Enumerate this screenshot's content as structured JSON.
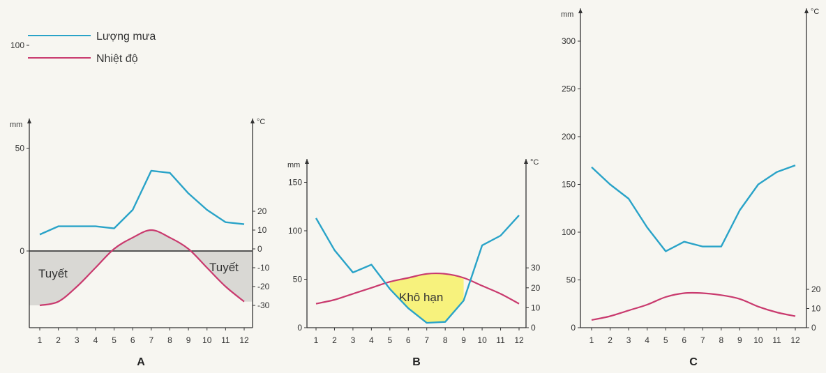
{
  "legend": {
    "items": [
      {
        "label": "Lượng mưa",
        "color": "#29a3c8"
      },
      {
        "label": "Nhiệt độ",
        "color": "#c93a6e"
      }
    ]
  },
  "axis_units": {
    "rain": "mm",
    "temp": "°C"
  },
  "colors": {
    "rain": "#29a3c8",
    "temp": "#c93a6e",
    "axis": "#333333",
    "snow_fill": "#d9d8d4",
    "dry_fill": "#f7f27d",
    "zero_line": "#555555"
  },
  "chart_data": [
    {
      "type": "line",
      "label": "A",
      "x": [
        1,
        2,
        3,
        4,
        5,
        6,
        7,
        8,
        9,
        10,
        11,
        12
      ],
      "series": [
        {
          "name": "Lượng mưa",
          "axis": "left",
          "values": [
            8,
            12,
            12,
            12,
            11,
            20,
            39,
            38,
            28,
            20,
            14,
            13
          ]
        },
        {
          "name": "Nhiệt độ",
          "axis": "right",
          "values": [
            -30,
            -28,
            -20,
            -10,
            0,
            6,
            10,
            6,
            0,
            -10,
            -20,
            -28
          ]
        }
      ],
      "left_axis": {
        "ticks": [
          0,
          50,
          100
        ],
        "range": [
          -75,
          110
        ]
      },
      "right_axis": {
        "ticks": [
          20,
          10,
          0,
          -10,
          -20,
          -30
        ],
        "tick_labels": [
          "20",
          "10",
          "0",
          "-10",
          "-20",
          "-30"
        ]
      },
      "annotations": [
        "Tuyết",
        "Tuyết"
      ]
    },
    {
      "type": "line",
      "label": "B",
      "x": [
        1,
        2,
        3,
        4,
        5,
        6,
        7,
        8,
        9,
        10,
        11,
        12
      ],
      "series": [
        {
          "name": "Lượng mưa",
          "axis": "left",
          "values": [
            113,
            80,
            57,
            65,
            40,
            20,
            5,
            6,
            28,
            85,
            95,
            116
          ]
        },
        {
          "name": "Nhiệt độ",
          "axis": "right",
          "values": [
            12,
            14,
            17,
            20,
            23,
            25,
            27,
            27,
            25,
            21,
            17,
            12
          ]
        }
      ],
      "left_axis": {
        "ticks": [
          0,
          50,
          100,
          150
        ],
        "range": [
          0,
          160
        ]
      },
      "right_axis": {
        "ticks": [
          0,
          10,
          20,
          30
        ],
        "tick_labels": [
          "0",
          "10",
          "20",
          "30"
        ]
      },
      "annotations": [
        "Khô hạn"
      ]
    },
    {
      "type": "line",
      "label": "C",
      "x": [
        1,
        2,
        3,
        4,
        5,
        6,
        7,
        8,
        9,
        10,
        11,
        12
      ],
      "series": [
        {
          "name": "Lượng mưa",
          "axis": "left",
          "values": [
            168,
            150,
            135,
            105,
            80,
            90,
            85,
            85,
            123,
            150,
            163,
            170
          ]
        },
        {
          "name": "Nhiệt độ",
          "axis": "right",
          "values": [
            4,
            6,
            9,
            12,
            16,
            18,
            18,
            17,
            15,
            11,
            8,
            6
          ]
        }
      ],
      "left_axis": {
        "ticks": [
          0,
          50,
          100,
          150,
          200,
          250,
          300
        ],
        "range": [
          0,
          310
        ]
      },
      "right_axis": {
        "ticks": [
          0,
          10,
          20
        ],
        "tick_labels": [
          "0",
          "10",
          "20"
        ]
      },
      "annotations": []
    }
  ]
}
